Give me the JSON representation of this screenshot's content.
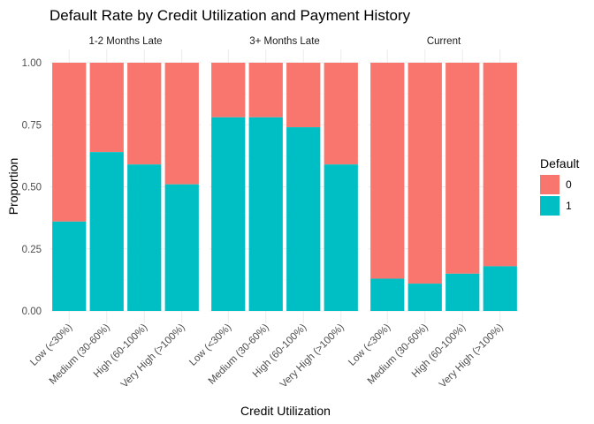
{
  "chart_data": {
    "type": "bar",
    "stacked": true,
    "title": "Default Rate by Credit Utilization and Payment History",
    "xlabel": "Credit Utilization",
    "ylabel": "Proportion",
    "ylim": [
      0,
      1
    ],
    "yticks": [
      "0.00",
      "0.25",
      "0.50",
      "0.75",
      "1.00"
    ],
    "grid": true,
    "categories": [
      "Low (<30%)",
      "Medium (30-60%)",
      "High (60-100%)",
      "Very High (>100%)"
    ],
    "legend": {
      "title": "Default",
      "position": "right",
      "items": [
        {
          "label": "0",
          "color": "#F8766D"
        },
        {
          "label": "1",
          "color": "#00BFC4"
        }
      ]
    },
    "facets": [
      {
        "name": "1-2 Months Late",
        "default_1": [
          0.36,
          0.64,
          0.59,
          0.51
        ]
      },
      {
        "name": "3+ Months Late",
        "default_1": [
          0.78,
          0.78,
          0.74,
          0.59
        ]
      },
      {
        "name": "Current",
        "default_1": [
          0.13,
          0.11,
          0.15,
          0.18
        ]
      }
    ]
  }
}
